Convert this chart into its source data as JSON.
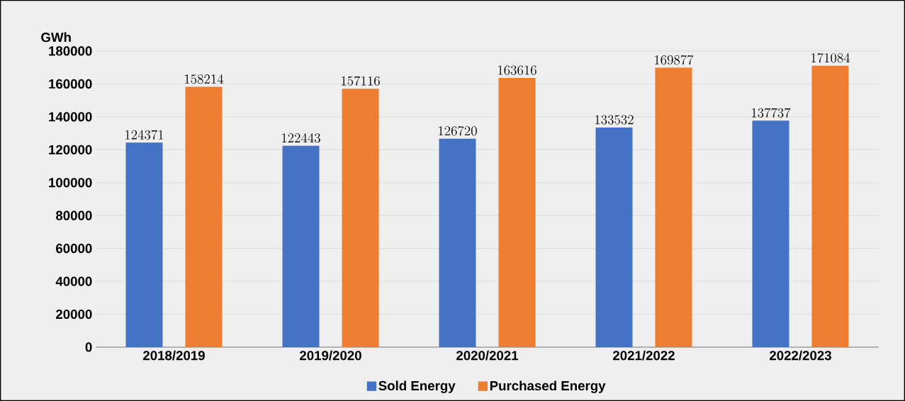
{
  "chart_data": {
    "type": "bar",
    "ylabel": "GWh",
    "categories": [
      "2018/2019",
      "2019/2020",
      "2020/2021",
      "2021/2022",
      "2022/2023"
    ],
    "series": [
      {
        "name": "Sold Energy",
        "color": "#4472c4",
        "values": [
          124371,
          122443,
          126720,
          133532,
          137737
        ]
      },
      {
        "name": "Purchased Energy",
        "color": "#ed7d31",
        "values": [
          158214,
          157116,
          163616,
          169877,
          171084
        ]
      }
    ],
    "ylim": [
      0,
      180000
    ],
    "yticks": [
      0,
      20000,
      40000,
      60000,
      80000,
      100000,
      120000,
      140000,
      160000,
      180000
    ],
    "grid": "y",
    "legend": "bottom",
    "data_labels": true
  }
}
